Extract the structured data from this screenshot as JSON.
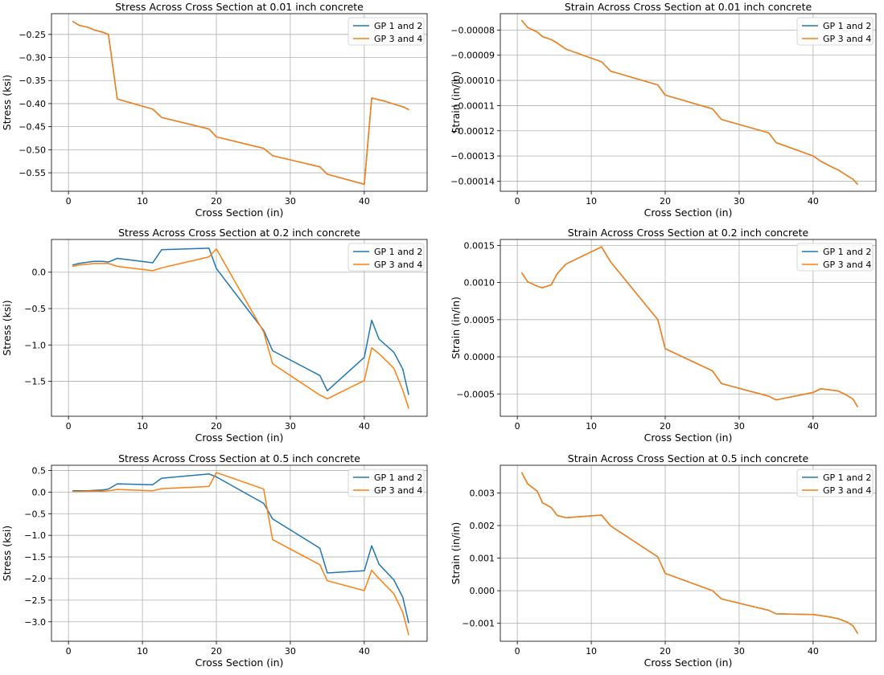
{
  "colors": {
    "gp12": "#1f77b4",
    "gp34": "#ff7f0e",
    "grid": "#b0b0b0"
  },
  "chart_data": [
    {
      "type": "line",
      "title": "Stress Across Cross Section at 0.01 inch concrete",
      "xlabel": "Cross Section (in)",
      "ylabel": "Stress (ksi)",
      "xlim": [
        -2.3,
        48.5
      ],
      "ylim": [
        -0.59,
        -0.205
      ],
      "xticks": [
        0,
        10,
        20,
        30,
        40
      ],
      "yticks": [
        -0.25,
        -0.3,
        -0.35,
        -0.4,
        -0.45,
        -0.5,
        -0.55
      ],
      "ytick_labels": [
        "−0.25",
        "−0.30",
        "−0.35",
        "−0.40",
        "−0.45",
        "−0.50",
        "−0.55"
      ],
      "grid": true,
      "legend_loc": "upper right",
      "x": [
        0.6,
        1.4,
        2.7,
        3.4,
        4.6,
        5.4,
        6.6,
        11.4,
        12.6,
        19.0,
        20.0,
        26.4,
        27.6,
        34.0,
        35.0,
        40.0,
        41.0,
        42.6,
        43.4,
        44.6,
        45.4,
        46.0
      ],
      "series": [
        {
          "name": "GP 1 and 2",
          "values": [
            -0.222,
            -0.23,
            -0.235,
            -0.24,
            -0.245,
            -0.25,
            -0.39,
            -0.412,
            -0.43,
            -0.455,
            -0.472,
            -0.497,
            -0.513,
            -0.537,
            -0.553,
            -0.575,
            -0.388,
            -0.394,
            -0.398,
            -0.404,
            -0.408,
            -0.413
          ]
        },
        {
          "name": "GP 3 and 4",
          "values": [
            -0.222,
            -0.23,
            -0.235,
            -0.24,
            -0.245,
            -0.25,
            -0.39,
            -0.412,
            -0.43,
            -0.455,
            -0.472,
            -0.497,
            -0.513,
            -0.537,
            -0.553,
            -0.575,
            -0.388,
            -0.394,
            -0.398,
            -0.404,
            -0.408,
            -0.413
          ]
        }
      ]
    },
    {
      "type": "line",
      "title": "Strain Across Cross Section at 0.01 inch concrete",
      "xlabel": "Cross Section (in)",
      "ylabel": "Strain (in/in)",
      "xlim": [
        -2.3,
        48.5
      ],
      "ylim": [
        -0.000144,
        -7.35e-05
      ],
      "xticks": [
        0,
        10,
        20,
        30,
        40
      ],
      "yticks": [
        -8e-05,
        -9e-05,
        -0.0001,
        -0.00011,
        -0.00012,
        -0.00013,
        -0.00014
      ],
      "ytick_labels": [
        "−0.00008",
        "−0.00009",
        "−0.00010",
        "−0.00011",
        "−0.00012",
        "−0.00013",
        "−0.00014"
      ],
      "grid": true,
      "legend_loc": "upper right",
      "x": [
        0.6,
        1.4,
        2.7,
        3.4,
        4.6,
        5.4,
        6.6,
        11.4,
        12.6,
        19.0,
        20.0,
        26.4,
        27.6,
        34.0,
        35.0,
        40.0,
        41.0,
        42.6,
        43.4,
        44.6,
        45.4,
        46.0
      ],
      "series": [
        {
          "name": "GP 1 and 2",
          "values": [
            -7.62e-05,
            -7.9e-05,
            -8.08e-05,
            -8.26e-05,
            -8.38e-05,
            -8.52e-05,
            -8.76e-05,
            -9.26e-05,
            -9.63e-05,
            -0.0001018,
            -0.0001058,
            -0.0001113,
            -0.0001155,
            -0.0001208,
            -0.0001247,
            -0.00013,
            -0.000132,
            -0.0001345,
            -0.0001355,
            -0.0001378,
            -0.0001392,
            -0.0001412
          ]
        },
        {
          "name": "GP 3 and 4",
          "values": [
            -7.62e-05,
            -7.9e-05,
            -8.08e-05,
            -8.26e-05,
            -8.38e-05,
            -8.52e-05,
            -8.76e-05,
            -9.26e-05,
            -9.63e-05,
            -0.0001018,
            -0.0001058,
            -0.0001113,
            -0.0001155,
            -0.0001208,
            -0.0001247,
            -0.00013,
            -0.000132,
            -0.0001345,
            -0.0001355,
            -0.0001378,
            -0.0001392,
            -0.0001412
          ]
        }
      ]
    },
    {
      "type": "line",
      "title": "Stress Across Cross Section at 0.2 inch concrete",
      "xlabel": "Cross Section (in)",
      "ylabel": "Stress (ksi)",
      "xlim": [
        -2.3,
        48.5
      ],
      "ylim": [
        -1.98,
        0.45
      ],
      "xticks": [
        0,
        10,
        20,
        30,
        40
      ],
      "yticks": [
        0.0,
        -0.5,
        -1.0,
        -1.5
      ],
      "ytick_labels": [
        "0.0",
        "−0.5",
        "−1.0",
        "−1.5"
      ],
      "grid": true,
      "legend_loc": "upper right",
      "x": [
        0.6,
        1.4,
        2.7,
        3.4,
        4.6,
        5.4,
        6.6,
        11.4,
        12.6,
        19.0,
        20.0,
        26.4,
        27.6,
        34.0,
        35.0,
        40.0,
        41.0,
        42.0,
        44.0,
        45.2,
        46.0
      ],
      "series": [
        {
          "name": "GP 1 and 2",
          "values": [
            0.1,
            0.12,
            0.14,
            0.15,
            0.15,
            0.14,
            0.19,
            0.13,
            0.31,
            0.33,
            0.05,
            -0.8,
            -1.08,
            -1.42,
            -1.63,
            -1.17,
            -0.66,
            -0.92,
            -1.1,
            -1.33,
            -1.68
          ]
        },
        {
          "name": "GP 3 and 4",
          "values": [
            0.08,
            0.1,
            0.11,
            0.12,
            0.12,
            0.12,
            0.08,
            0.02,
            0.06,
            0.21,
            0.32,
            -0.82,
            -1.26,
            -1.69,
            -1.74,
            -1.49,
            -1.04,
            -1.12,
            -1.32,
            -1.62,
            -1.87
          ]
        }
      ]
    },
    {
      "type": "line",
      "title": "Strain Across Cross Section at 0.2 inch concrete",
      "xlabel": "Cross Section (in)",
      "ylabel": "Strain (in/in)",
      "xlim": [
        -2.3,
        48.5
      ],
      "ylim": [
        -0.0008,
        0.00158
      ],
      "xticks": [
        0,
        10,
        20,
        30,
        40
      ],
      "yticks": [
        0.0015,
        0.001,
        0.0005,
        0.0,
        -0.0005
      ],
      "ytick_labels": [
        "0.0015",
        "0.0010",
        "0.0005",
        "0.0000",
        "−0.0005"
      ],
      "grid": true,
      "legend_loc": "upper right",
      "x": [
        0.6,
        1.4,
        2.7,
        3.4,
        4.6,
        5.4,
        6.6,
        11.4,
        12.6,
        19.0,
        20.0,
        26.4,
        27.6,
        34.0,
        35.0,
        40.0,
        41.0,
        42.6,
        43.4,
        44.6,
        45.4,
        46.0
      ],
      "series": [
        {
          "name": "GP 1 and 2",
          "values": [
            0.00113,
            0.00101,
            0.00095,
            0.00093,
            0.00097,
            0.00112,
            0.00125,
            0.00148,
            0.00128,
            0.0005,
            0.00011,
            -0.00019,
            -0.00036,
            -0.00053,
            -0.00058,
            -0.00048,
            -0.00043,
            -0.00045,
            -0.00046,
            -0.00052,
            -0.00057,
            -0.00067
          ]
        },
        {
          "name": "GP 3 and 4",
          "values": [
            0.00113,
            0.00101,
            0.00095,
            0.00093,
            0.00097,
            0.00112,
            0.00125,
            0.00148,
            0.00128,
            0.0005,
            0.00011,
            -0.00019,
            -0.00036,
            -0.00053,
            -0.00058,
            -0.00048,
            -0.00043,
            -0.00045,
            -0.00046,
            -0.00052,
            -0.00057,
            -0.00067
          ]
        }
      ]
    },
    {
      "type": "line",
      "title": "Stress Across Cross Section at 0.5 inch concrete",
      "xlabel": "Cross Section (in)",
      "ylabel": "Stress (ksi)",
      "xlim": [
        -2.3,
        48.5
      ],
      "ylim": [
        -3.45,
        0.62
      ],
      "xticks": [
        0,
        10,
        20,
        30,
        40
      ],
      "yticks": [
        0.5,
        0.0,
        -0.5,
        -1.0,
        -1.5,
        -2.0,
        -2.5,
        -3.0
      ],
      "ytick_labels": [
        "0.5",
        "0.0",
        "−0.5",
        "−1.0",
        "−1.5",
        "−2.0",
        "−2.5",
        "−3.0"
      ],
      "grid": true,
      "legend_loc": "upper right",
      "x": [
        0.6,
        1.4,
        2.7,
        3.4,
        4.6,
        5.4,
        6.6,
        11.4,
        12.6,
        19.0,
        20.0,
        26.4,
        27.6,
        34.0,
        35.0,
        40.0,
        41.0,
        42.0,
        44.0,
        45.2,
        46.0
      ],
      "series": [
        {
          "name": "GP 1 and 2",
          "values": [
            0.03,
            0.03,
            0.03,
            0.04,
            0.05,
            0.07,
            0.19,
            0.17,
            0.32,
            0.42,
            0.35,
            -0.26,
            -0.62,
            -1.3,
            -1.87,
            -1.82,
            -1.24,
            -1.67,
            -2.03,
            -2.43,
            -3.02
          ]
        },
        {
          "name": "GP 3 and 4",
          "values": [
            0.01,
            0.01,
            0.02,
            0.02,
            0.02,
            0.03,
            0.06,
            0.03,
            0.08,
            0.13,
            0.45,
            0.07,
            -1.1,
            -1.68,
            -2.05,
            -2.28,
            -1.81,
            -2.0,
            -2.35,
            -2.78,
            -3.3
          ]
        }
      ]
    },
    {
      "type": "line",
      "title": "Strain Across Cross Section at 0.5 inch concrete",
      "xlabel": "Cross Section (in)",
      "ylabel": "Strain (in/in)",
      "xlim": [
        -2.3,
        48.5
      ],
      "ylim": [
        -0.00155,
        0.00385
      ],
      "xticks": [
        0,
        10,
        20,
        30,
        40
      ],
      "yticks": [
        0.003,
        0.002,
        0.001,
        0.0,
        -0.001
      ],
      "ytick_labels": [
        "0.003",
        "0.002",
        "0.001",
        "0.000",
        "−0.001"
      ],
      "grid": true,
      "legend_loc": "upper right",
      "x": [
        0.6,
        1.4,
        2.7,
        3.4,
        4.6,
        5.4,
        6.6,
        11.4,
        12.6,
        19.0,
        20.0,
        26.4,
        27.6,
        34.0,
        35.0,
        40.0,
        41.0,
        42.6,
        43.4,
        44.6,
        45.4,
        46.0
      ],
      "series": [
        {
          "name": "GP 1 and 2",
          "values": [
            0.00362,
            0.00328,
            0.00305,
            0.0027,
            0.00255,
            0.00231,
            0.00224,
            0.00232,
            0.00199,
            0.00104,
            0.00053,
            0.0,
            -0.00025,
            -0.0006,
            -0.00071,
            -0.00073,
            -0.00076,
            -0.00082,
            -0.00086,
            -0.00096,
            -0.00108,
            -0.0013
          ]
        },
        {
          "name": "GP 3 and 4",
          "values": [
            0.00362,
            0.00328,
            0.00305,
            0.0027,
            0.00255,
            0.00231,
            0.00224,
            0.00232,
            0.00199,
            0.00104,
            0.00053,
            0.0,
            -0.00025,
            -0.0006,
            -0.00071,
            -0.00073,
            -0.00076,
            -0.00082,
            -0.00086,
            -0.00096,
            -0.00108,
            -0.0013
          ]
        }
      ]
    }
  ]
}
